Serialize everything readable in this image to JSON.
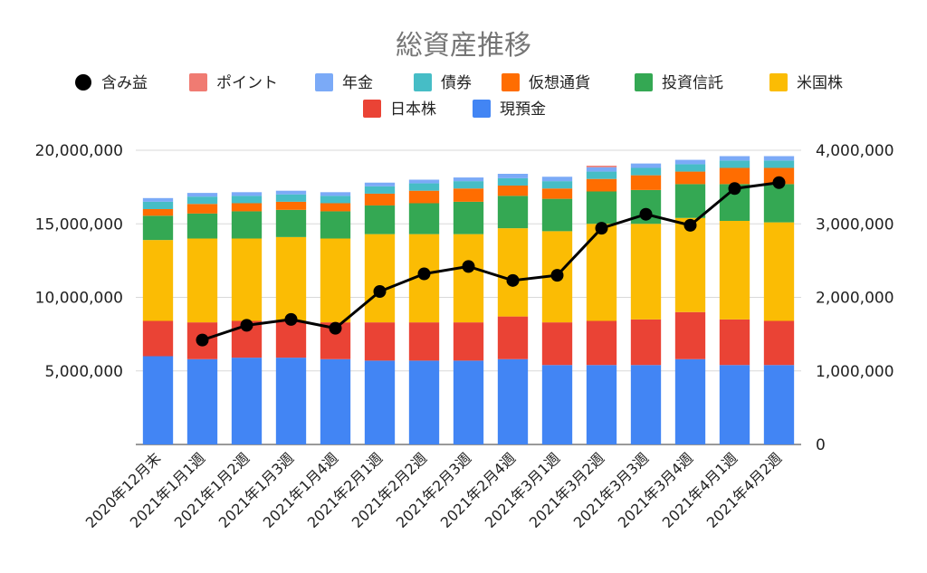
{
  "chart_data": {
    "type": "bar",
    "stacked": true,
    "title": "総資産推移",
    "categories": [
      "2020年12月末",
      "2021年1月1週",
      "2021年1月2週",
      "2021年1月3週",
      "2021年1月4週",
      "2021年2月1週",
      "2021年2月2週",
      "2021年2月3週",
      "2021年2月4週",
      "2021年3月1週",
      "2021年3月2週",
      "2021年3月3週",
      "2021年3月4週",
      "2021年4月1週",
      "2021年4月2週"
    ],
    "left_axis": {
      "ylim": [
        0,
        20000000
      ],
      "ticks": [
        "5,000,000",
        "10,000,000",
        "15,000,000",
        "20,000,000"
      ],
      "tick_values": [
        5000000,
        10000000,
        15000000,
        20000000
      ]
    },
    "right_axis": {
      "ylim": [
        0,
        4000000
      ],
      "ticks": [
        "0",
        "1,000,000",
        "2,000,000",
        "3,000,000",
        "4,000,000"
      ],
      "tick_values": [
        0,
        1000000,
        2000000,
        3000000,
        4000000
      ]
    },
    "grid": true,
    "legend_position": "top",
    "series": [
      {
        "name": "現預金",
        "color": "#4285F4",
        "axis": "left",
        "values": [
          6000000,
          5800000,
          5900000,
          5900000,
          5800000,
          5700000,
          5700000,
          5700000,
          5800000,
          5400000,
          5400000,
          5400000,
          5800000,
          5400000,
          5400000
        ]
      },
      {
        "name": "日本株",
        "color": "#EA4335",
        "axis": "left",
        "values": [
          2400000,
          2500000,
          2500000,
          2500000,
          2500000,
          2600000,
          2600000,
          2600000,
          2900000,
          2900000,
          3000000,
          3100000,
          3200000,
          3100000,
          3000000
        ]
      },
      {
        "name": "米国株",
        "color": "#FBBC04",
        "axis": "left",
        "values": [
          5500000,
          5700000,
          5600000,
          5700000,
          5700000,
          6000000,
          6000000,
          6000000,
          6000000,
          6200000,
          6600000,
          6500000,
          6400000,
          6700000,
          6700000
        ]
      },
      {
        "name": "投資信託",
        "color": "#34A853",
        "axis": "left",
        "values": [
          1650000,
          1700000,
          1850000,
          1850000,
          1850000,
          1950000,
          2100000,
          2200000,
          2200000,
          2200000,
          2200000,
          2300000,
          2300000,
          2500000,
          2600000
        ]
      },
      {
        "name": "仮想通貨",
        "color": "#FF6D01",
        "axis": "left",
        "values": [
          450000,
          650000,
          550000,
          550000,
          550000,
          800000,
          850000,
          900000,
          700000,
          700000,
          850000,
          1000000,
          850000,
          1100000,
          1100000
        ]
      },
      {
        "name": "債券",
        "color": "#46BDC6",
        "axis": "left",
        "values": [
          500000,
          500000,
          500000,
          500000,
          500000,
          500000,
          500000,
          500000,
          500000,
          500000,
          500000,
          500000,
          500000,
          500000,
          500000
        ]
      },
      {
        "name": "年金",
        "color": "#7BAAF7",
        "axis": "left",
        "values": [
          250000,
          250000,
          250000,
          250000,
          250000,
          250000,
          250000,
          250000,
          300000,
          300000,
          300000,
          300000,
          300000,
          300000,
          300000
        ]
      },
      {
        "name": "ポイント",
        "color": "#F07B72",
        "axis": "left",
        "values": [
          0,
          0,
          0,
          0,
          0,
          0,
          0,
          0,
          0,
          0,
          100000,
          0,
          0,
          0,
          0
        ]
      },
      {
        "name": "含み益",
        "color": "#000000",
        "axis": "right",
        "type": "line",
        "values": [
          null,
          1420000,
          1620000,
          1700000,
          1580000,
          2080000,
          2320000,
          2420000,
          2230000,
          2300000,
          2940000,
          3130000,
          2980000,
          3480000,
          3560000
        ]
      }
    ],
    "legend_rows": [
      [
        "含み益",
        "ポイント",
        "年金",
        "債券",
        "仮想通貨",
        "投資信託",
        "米国株"
      ],
      [
        "日本株",
        "現預金"
      ]
    ]
  }
}
